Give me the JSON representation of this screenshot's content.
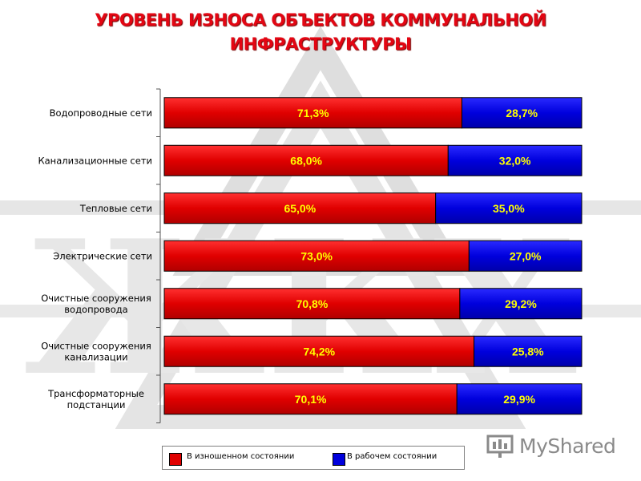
{
  "header": {
    "title_line1": "УРОВЕНЬ ИЗНОСА  ОБЪЕКТОВ КОММУНАЛЬНОЙ",
    "title_line2": "ИНФРАСТРУКТУРЫ"
  },
  "chart_data": {
    "type": "bar",
    "orientation": "horizontal",
    "stacked": true,
    "categories": [
      "Водопроводные сети",
      "Канализационные сети",
      "Тепловые сети",
      "Электрические сети",
      "Очистные сооружения водопровода",
      "Очистные сооружения канализации",
      "Трансформаторные подстанции"
    ],
    "category_lines": [
      [
        "Водопроводные сети"
      ],
      [
        "Канализационные сети"
      ],
      [
        "Тепловые сети"
      ],
      [
        "Электрические сети"
      ],
      [
        "Очистные сооружения",
        "водопровода"
      ],
      [
        "Очистные сооружения",
        "канализации"
      ],
      [
        "Трансформаторные",
        "подстанции"
      ]
    ],
    "series": [
      {
        "name": "В изношенном состоянии",
        "values": [
          71.3,
          68.0,
          65.0,
          73.0,
          70.8,
          74.2,
          70.1
        ],
        "labels": [
          "71,3%",
          "68,0%",
          "65,0%",
          "73,0%",
          "70,8%",
          "74,2%",
          "70,1%"
        ],
        "color": "#e00000"
      },
      {
        "name": "В рабочем состоянии",
        "values": [
          28.7,
          32.0,
          35.0,
          27.0,
          29.2,
          25.8,
          29.9
        ],
        "labels": [
          "28,7%",
          "32,0%",
          "35,0%",
          "27,0%",
          "29,2%",
          "25,8%",
          "29,9%"
        ],
        "color": "#0000dd"
      }
    ],
    "xlim": [
      0,
      100
    ],
    "label_color": "#ffff00",
    "legend_position": "bottom"
  },
  "branding": {
    "logo_text": "MyShared"
  }
}
